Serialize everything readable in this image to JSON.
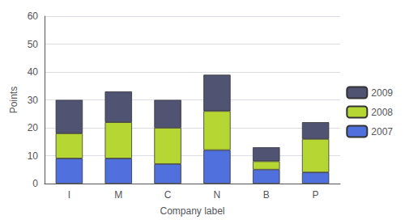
{
  "chart_data": {
    "type": "bar",
    "stacked": true,
    "xlabel": "Company label",
    "ylabel": "Points",
    "categories": [
      "I",
      "M",
      "C",
      "N",
      "B",
      "P"
    ],
    "series": [
      {
        "name": "2007",
        "values": [
          9,
          9,
          7,
          12,
          5,
          4
        ]
      },
      {
        "name": "2008",
        "values": [
          9,
          13,
          13,
          14,
          3,
          12
        ]
      },
      {
        "name": "2009",
        "values": [
          12,
          11,
          10,
          13,
          5,
          6
        ]
      }
    ],
    "ylim": [
      0,
      60
    ],
    "yticks": [
      0,
      10,
      20,
      30,
      40,
      50,
      60
    ],
    "grid": true,
    "legend": "right"
  }
}
